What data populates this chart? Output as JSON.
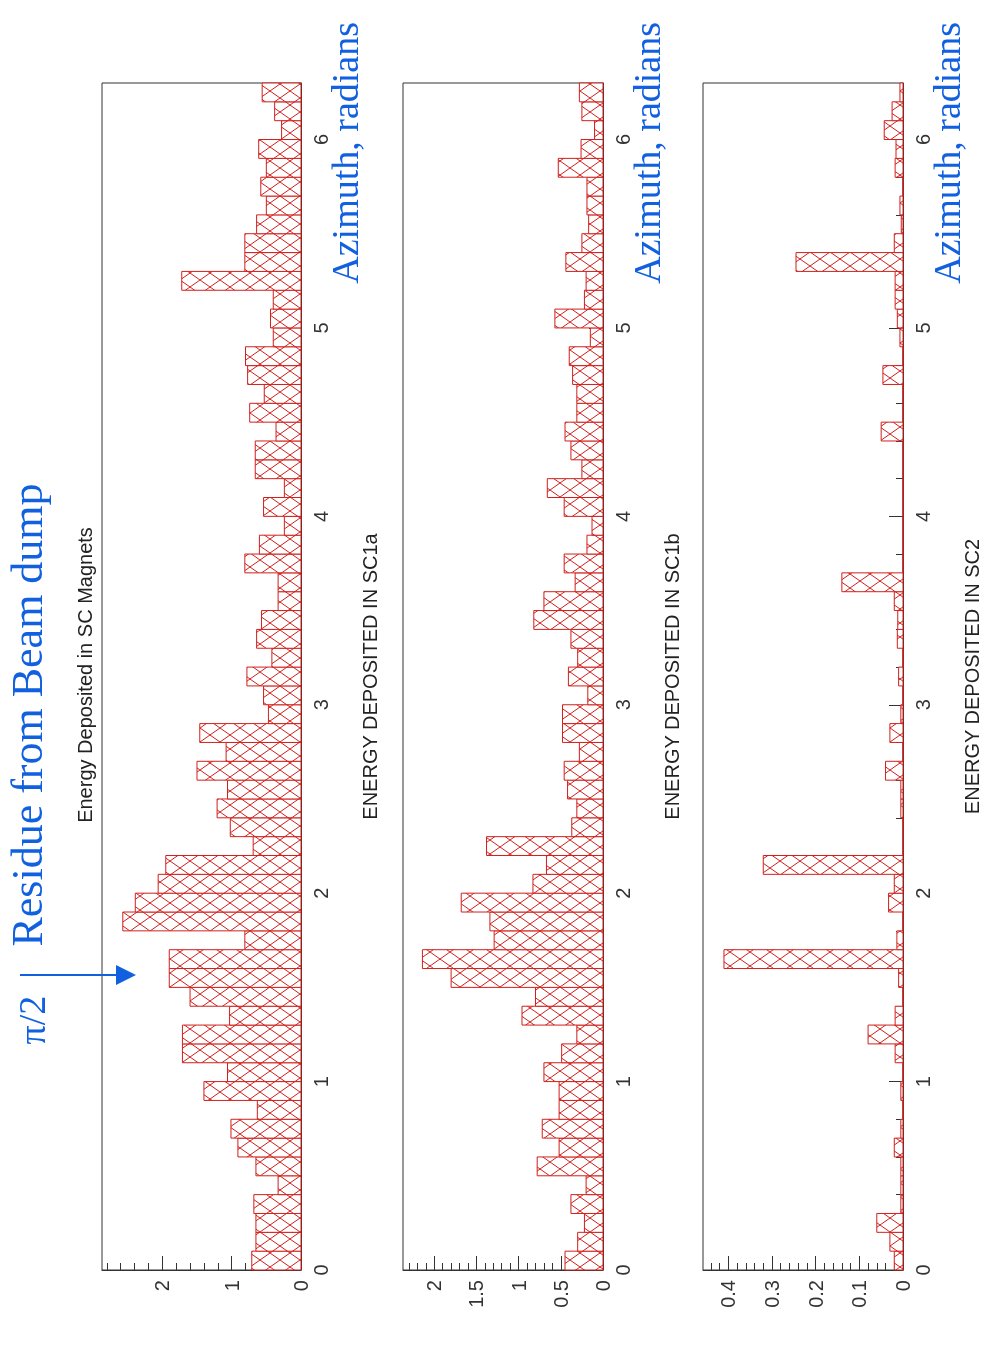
{
  "chart_data": [
    {
      "type": "histogram",
      "orientation": "horizontal",
      "title": "Residue from Beam dump",
      "subtitle": "Energy Deposited in SC Magnets",
      "ylabel": "Azimuth, radians",
      "color": "#d0201c",
      "annotations": [
        "ENERGY DEPOSITED IN SC1a",
        "π/2"
      ],
      "bins": [
        0,
        0.1,
        0.2,
        0.3,
        0.4,
        0.5,
        0.6,
        0.7,
        0.8,
        0.9,
        1,
        1.1,
        1.2,
        1.3,
        1.4,
        1.5,
        1.6,
        1.7,
        1.8,
        1.9,
        2,
        2.1,
        2.2,
        2.3,
        2.4,
        2.5,
        2.6,
        2.7,
        2.8,
        2.9,
        3,
        3.1,
        3.2,
        3.3,
        3.4,
        3.5,
        3.6,
        3.7,
        3.8,
        3.9,
        4,
        4.1,
        4.2,
        4.3,
        4.4,
        4.5,
        4.6,
        4.7,
        4.8,
        4.9,
        5,
        5.1,
        5.2,
        5.3,
        5.4,
        5.5,
        5.6,
        5.7,
        5.8,
        5.9,
        6,
        6.1,
        6.2,
        6.3
      ],
      "values": [
        0.71,
        0.65,
        0.65,
        0.68,
        0.33,
        0.65,
        0.91,
        1.01,
        0.63,
        1.4,
        1.06,
        1.71,
        1.71,
        1.03,
        1.6,
        1.9,
        1.9,
        0.81,
        2.57,
        2.39,
        2.06,
        1.95,
        0.69,
        1.02,
        1.21,
        1.06,
        1.5,
        1.08,
        1.46,
        0.47,
        0.54,
        0.78,
        0.42,
        0.64,
        0.57,
        0.33,
        0.33,
        0.81,
        0.6,
        0.24,
        0.54,
        0.24,
        0.66,
        0.66,
        0.36,
        0.74,
        0.53,
        0.77,
        0.8,
        0.4,
        0.44,
        0.4,
        1.72,
        0.81,
        0.81,
        0.64,
        0.5,
        0.58,
        0.5,
        0.61,
        0.28,
        0.38,
        0.56
      ],
      "ylim": [
        0,
        6.3
      ],
      "xlim": [
        2.87,
        0
      ],
      "yticks": [
        0,
        {
          "value": 0.2,
          "label": null
        },
        {
          "value": 0.4,
          "label": null
        },
        {
          "value": 0.6,
          "label": null
        },
        {
          "value": 0.8,
          "label": null
        },
        1,
        {
          "value": 1.2,
          "label": null
        },
        {
          "value": 1.4,
          "label": null
        },
        {
          "value": 1.6,
          "label": null
        },
        {
          "value": 1.8,
          "label": null
        },
        2,
        {
          "value": 2.2,
          "label": null
        },
        {
          "value": 2.4,
          "label": null
        },
        {
          "value": 2.6,
          "label": null
        },
        {
          "value": 2.8,
          "label": null
        },
        3,
        {
          "value": 3.2,
          "label": null
        },
        {
          "value": 3.4,
          "label": null
        },
        {
          "value": 3.6,
          "label": null
        },
        {
          "value": 3.8,
          "label": null
        },
        4,
        {
          "value": 4.2,
          "label": null
        },
        {
          "value": 4.4,
          "label": null
        },
        {
          "value": 4.6,
          "label": null
        },
        {
          "value": 4.8,
          "label": null
        },
        5,
        {
          "value": 5.2,
          "label": null
        },
        {
          "value": 5.4,
          "label": null
        },
        {
          "value": 5.6,
          "label": null
        },
        {
          "value": 5.8,
          "label": null
        },
        6,
        {
          "value": 6.2,
          "label": null
        }
      ],
      "xticks": [
        0,
        {
          "value": 0.2,
          "label": null
        },
        {
          "value": 0.4,
          "label": null
        },
        {
          "value": 0.6,
          "label": null
        },
        {
          "value": 0.8,
          "label": null
        },
        1,
        {
          "value": 1.2,
          "label": null
        },
        {
          "value": 1.4,
          "label": null
        },
        {
          "value": 1.6,
          "label": null
        },
        {
          "value": 1.8,
          "label": null
        },
        2,
        {
          "value": 2.2,
          "label": null
        },
        {
          "value": 2.4,
          "label": null
        },
        {
          "value": 2.6,
          "label": null
        },
        {
          "value": 2.8,
          "label": null
        }
      ]
    },
    {
      "type": "histogram",
      "orientation": "horizontal",
      "ylabel": "Azimuth, radians",
      "color": "#d0201c",
      "annotations": [
        "ENERGY DEPOSITED IN SC1b"
      ],
      "bins": [
        0,
        0.1,
        0.2,
        0.3,
        0.4,
        0.5,
        0.6,
        0.7,
        0.8,
        0.9,
        1,
        1.1,
        1.2,
        1.3,
        1.4,
        1.5,
        1.6,
        1.7,
        1.8,
        1.9,
        2,
        2.1,
        2.2,
        2.3,
        2.4,
        2.5,
        2.6,
        2.7,
        2.8,
        2.9,
        3,
        3.1,
        3.2,
        3.3,
        3.4,
        3.5,
        3.6,
        3.7,
        3.8,
        3.9,
        4,
        4.1,
        4.2,
        4.3,
        4.4,
        4.5,
        4.6,
        4.7,
        4.8,
        4.9,
        5,
        5.1,
        5.2,
        5.3,
        5.4,
        5.5,
        5.6,
        5.7,
        5.8,
        5.9,
        6,
        6.1,
        6.2,
        6.3
      ],
      "values": [
        0.45,
        0.3,
        0.22,
        0.38,
        0.2,
        0.78,
        0.52,
        0.72,
        0.52,
        0.52,
        0.7,
        0.49,
        0.31,
        0.96,
        0.8,
        1.8,
        2.14,
        1.29,
        1.34,
        1.68,
        0.83,
        0.67,
        1.38,
        0.37,
        0.31,
        0.42,
        0.46,
        0.28,
        0.48,
        0.48,
        0.18,
        0.41,
        0.3,
        0.38,
        0.82,
        0.7,
        0.33,
        0.46,
        0.19,
        0.13,
        0.46,
        0.66,
        0.25,
        0.38,
        0.45,
        0.31,
        0.31,
        0.36,
        0.4,
        0.15,
        0.57,
        0.22,
        0.2,
        0.44,
        0.25,
        0.17,
        0.19,
        0.19,
        0.53,
        0.26,
        0.1,
        0.25,
        0.28
      ],
      "ylim": [
        0,
        6.3
      ],
      "xlim": [
        2.37,
        0
      ],
      "yticks": [
        0,
        {
          "value": 0.2,
          "label": null
        },
        {
          "value": 0.4,
          "label": null
        },
        {
          "value": 0.6,
          "label": null
        },
        {
          "value": 0.8,
          "label": null
        },
        1,
        {
          "value": 1.2,
          "label": null
        },
        {
          "value": 1.4,
          "label": null
        },
        {
          "value": 1.6,
          "label": null
        },
        {
          "value": 1.8,
          "label": null
        },
        2,
        {
          "value": 2.2,
          "label": null
        },
        {
          "value": 2.4,
          "label": null
        },
        {
          "value": 2.6,
          "label": null
        },
        {
          "value": 2.8,
          "label": null
        },
        3,
        {
          "value": 3.2,
          "label": null
        },
        {
          "value": 3.4,
          "label": null
        },
        {
          "value": 3.6,
          "label": null
        },
        {
          "value": 3.8,
          "label": null
        },
        4,
        {
          "value": 4.2,
          "label": null
        },
        {
          "value": 4.4,
          "label": null
        },
        {
          "value": 4.6,
          "label": null
        },
        {
          "value": 4.8,
          "label": null
        },
        5,
        {
          "value": 5.2,
          "label": null
        },
        {
          "value": 5.4,
          "label": null
        },
        {
          "value": 5.6,
          "label": null
        },
        {
          "value": 5.8,
          "label": null
        },
        6,
        {
          "value": 6.2,
          "label": null
        }
      ],
      "xticks": [
        0,
        {
          "value": 0.1,
          "label": null
        },
        {
          "value": 0.2,
          "label": null
        },
        {
          "value": 0.3,
          "label": null
        },
        {
          "value": 0.4,
          "label": null
        },
        0.5,
        {
          "value": 0.6,
          "label": null
        },
        {
          "value": 0.7,
          "label": null
        },
        {
          "value": 0.8,
          "label": null
        },
        {
          "value": 0.9,
          "label": null
        },
        1,
        {
          "value": 1.1,
          "label": null
        },
        {
          "value": 1.2,
          "label": null
        },
        {
          "value": 1.3,
          "label": null
        },
        {
          "value": 1.4,
          "label": null
        },
        1.5,
        {
          "value": 1.6,
          "label": null
        },
        {
          "value": 1.7,
          "label": null
        },
        {
          "value": 1.8,
          "label": null
        },
        {
          "value": 1.9,
          "label": null
        },
        2,
        {
          "value": 2.1,
          "label": null
        },
        {
          "value": 2.2,
          "label": null
        },
        {
          "value": 2.3,
          "label": null
        }
      ]
    },
    {
      "type": "histogram",
      "orientation": "horizontal",
      "ylabel": "Azimuth, radians",
      "color": "#d0201c",
      "annotations": [
        "ENERGY DEPOSITED IN SC2"
      ],
      "bins": [
        0,
        0.1,
        0.2,
        0.3,
        0.4,
        0.5,
        0.6,
        0.7,
        0.8,
        0.9,
        1,
        1.1,
        1.2,
        1.3,
        1.4,
        1.5,
        1.6,
        1.7,
        1.8,
        1.9,
        2,
        2.1,
        2.2,
        2.3,
        2.4,
        2.5,
        2.6,
        2.7,
        2.8,
        2.9,
        3,
        3.1,
        3.2,
        3.3,
        3.4,
        3.5,
        3.6,
        3.7,
        3.8,
        3.9,
        4,
        4.1,
        4.2,
        4.3,
        4.4,
        4.5,
        4.6,
        4.7,
        4.8,
        4.9,
        5,
        5.1,
        5.2,
        5.3,
        5.4,
        5.5,
        5.6,
        5.7,
        5.8,
        5.9,
        6,
        6.1,
        6.2,
        6.3
      ],
      "values": [
        0.02,
        0.03,
        0.06,
        0.005,
        0.005,
        0.005,
        0.02,
        0.005,
        0,
        0.005,
        0,
        0.018,
        0.08,
        0.018,
        0,
        0.01,
        0.41,
        0.014,
        0,
        0.033,
        0.02,
        0.32,
        0,
        0,
        0.005,
        0.005,
        0.04,
        0,
        0.03,
        0.005,
        0,
        0.01,
        0,
        0.013,
        0.012,
        0.02,
        0.14,
        0,
        0,
        0,
        0,
        0,
        0,
        0,
        0.05,
        0,
        0,
        0.046,
        0,
        0.007,
        0.013,
        0.018,
        0.018,
        0.245,
        0.02,
        0.004,
        0.007,
        0,
        0.018,
        0.016,
        0.043,
        0.025,
        0.007
      ],
      "ylim": [
        0,
        6.3
      ],
      "xlim": [
        0.458,
        0
      ],
      "yticks": [
        0,
        {
          "value": 0.2,
          "label": null
        },
        {
          "value": 0.4,
          "label": null
        },
        {
          "value": 0.6,
          "label": null
        },
        {
          "value": 0.8,
          "label": null
        },
        1,
        {
          "value": 1.2,
          "label": null
        },
        {
          "value": 1.4,
          "label": null
        },
        {
          "value": 1.6,
          "label": null
        },
        {
          "value": 1.8,
          "label": null
        },
        2,
        {
          "value": 2.2,
          "label": null
        },
        {
          "value": 2.4,
          "label": null
        },
        {
          "value": 2.6,
          "label": null
        },
        {
          "value": 2.8,
          "label": null
        },
        3,
        {
          "value": 3.2,
          "label": null
        },
        {
          "value": 3.4,
          "label": null
        },
        {
          "value": 3.6,
          "label": null
        },
        {
          "value": 3.8,
          "label": null
        },
        4,
        {
          "value": 4.2,
          "label": null
        },
        {
          "value": 4.4,
          "label": null
        },
        {
          "value": 4.6,
          "label": null
        },
        {
          "value": 4.8,
          "label": null
        },
        5,
        {
          "value": 5.2,
          "label": null
        },
        {
          "value": 5.4,
          "label": null
        },
        {
          "value": 5.6,
          "label": null
        },
        {
          "value": 5.8,
          "label": null
        },
        6,
        {
          "value": 6.2,
          "label": null
        }
      ],
      "xticks": [
        0,
        {
          "value": 0.02,
          "label": null
        },
        {
          "value": 0.04,
          "label": null
        },
        {
          "value": 0.06,
          "label": null
        },
        {
          "value": 0.08,
          "label": null
        },
        0.1,
        {
          "value": 0.12,
          "label": null
        },
        {
          "value": 0.14,
          "label": null
        },
        {
          "value": 0.16,
          "label": null
        },
        {
          "value": 0.18,
          "label": null
        },
        0.2,
        {
          "value": 0.22,
          "label": null
        },
        {
          "value": 0.24,
          "label": null
        },
        {
          "value": 0.26,
          "label": null
        },
        {
          "value": 0.28,
          "label": null
        },
        0.3,
        {
          "value": 0.32,
          "label": null
        },
        {
          "value": 0.34,
          "label": null
        },
        {
          "value": 0.36,
          "label": null
        },
        {
          "value": 0.38,
          "label": null
        },
        0.4,
        {
          "value": 0.42,
          "label": null
        },
        {
          "value": 0.44,
          "label": null
        }
      ]
    }
  ]
}
